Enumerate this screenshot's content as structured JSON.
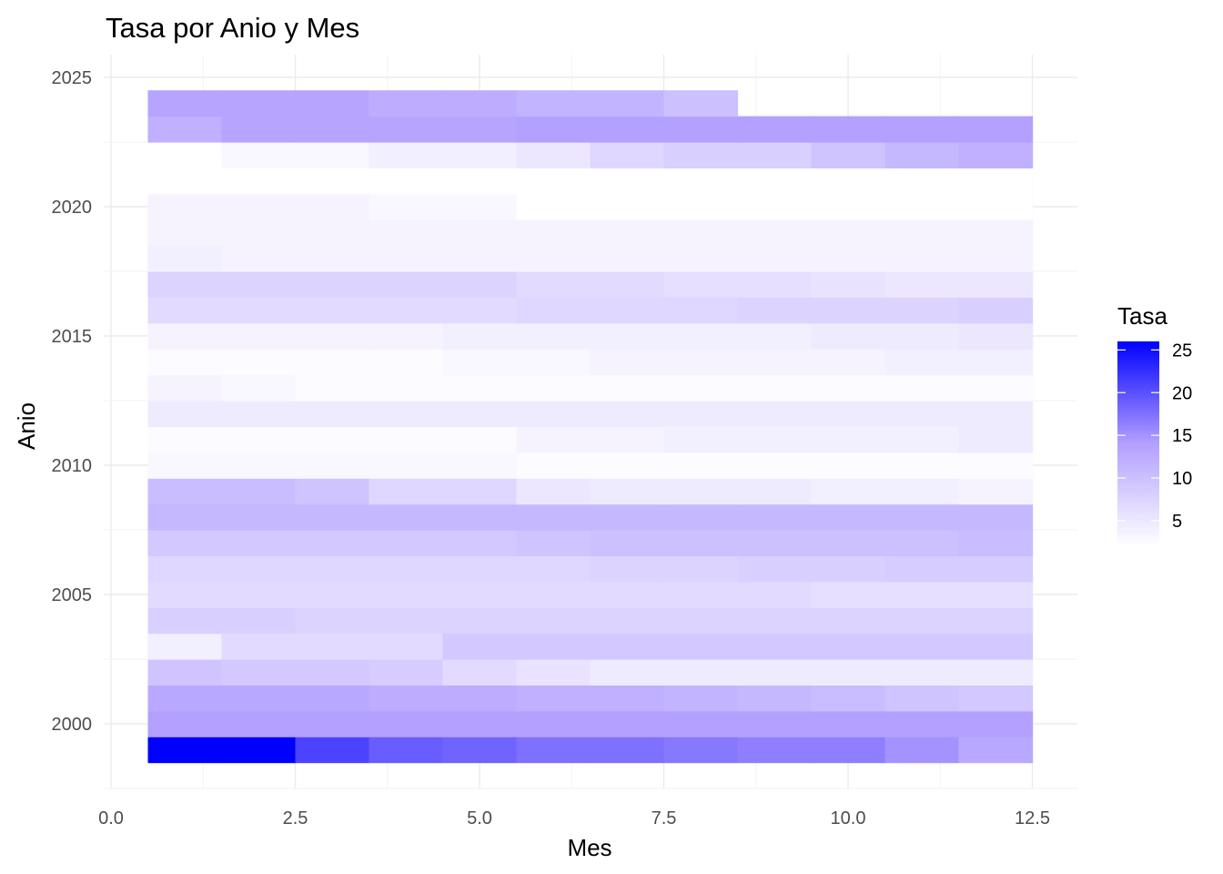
{
  "chart_data": {
    "type": "heatmap",
    "title": "Tasa por Anio y Mes",
    "xlabel": "Mes",
    "ylabel": "Anio",
    "xlim": [
      0,
      12.5
    ],
    "ylim": [
      1998.5,
      2024.5
    ],
    "x_ticks": [
      "0.0",
      "2.5",
      "5.0",
      "7.5",
      "10.0",
      "12.5"
    ],
    "y_ticks": [
      "2000",
      "2005",
      "2010",
      "2015",
      "2020",
      "2025"
    ],
    "grid": true,
    "legend": {
      "title": "Tasa",
      "position": "right",
      "labels": [
        "5",
        "10",
        "15",
        "20",
        "25"
      ],
      "low_color": "#ffffff",
      "high_color": "#0000ff",
      "range": [
        2,
        26
      ]
    },
    "months": [
      1,
      2,
      3,
      4,
      5,
      6,
      7,
      8,
      9,
      10,
      11,
      12
    ],
    "years": [
      1999,
      2000,
      2001,
      2002,
      2003,
      2004,
      2005,
      2006,
      2007,
      2008,
      2009,
      2010,
      2011,
      2012,
      2013,
      2014,
      2015,
      2016,
      2017,
      2018,
      2019,
      2020,
      2021,
      2022,
      2023,
      2024
    ],
    "values": [
      [
        26,
        26,
        21,
        19,
        18.5,
        17.5,
        17.5,
        17,
        16.5,
        16.5,
        15,
        13
      ],
      [
        14,
        14,
        14,
        14,
        14,
        14,
        14,
        14,
        14,
        14,
        14,
        14
      ],
      [
        13,
        13,
        13,
        12.5,
        12.5,
        12,
        12,
        11.5,
        11,
        10.5,
        9.5,
        9
      ],
      [
        9.5,
        9,
        9,
        8.5,
        6.5,
        5.5,
        4.5,
        4.5,
        4.5,
        4.5,
        4.5,
        4.5
      ],
      [
        4,
        6.5,
        6.5,
        6.5,
        9,
        9,
        9,
        9,
        9,
        9,
        9,
        9
      ],
      [
        8,
        8,
        7.5,
        7.5,
        7.5,
        7.5,
        7.5,
        7.5,
        7.5,
        7.5,
        7.5,
        7.5
      ],
      [
        6.5,
        6.5,
        6.5,
        6.5,
        6.5,
        6.5,
        6.5,
        6.5,
        6.5,
        6,
        6,
        6
      ],
      [
        7,
        7,
        7,
        7,
        7,
        7,
        7.5,
        7.5,
        8,
        8,
        8.5,
        8.5
      ],
      [
        9,
        9,
        9,
        9,
        9,
        9.5,
        10,
        10,
        10,
        10,
        10,
        10.5
      ],
      [
        11,
        11,
        11,
        11,
        11,
        11,
        11,
        11,
        11,
        11,
        11,
        11
      ],
      [
        10.5,
        10.5,
        9.5,
        7,
        7,
        5,
        4.5,
        4.5,
        4.5,
        4,
        4,
        3.5
      ],
      [
        3,
        3,
        3,
        3,
        3,
        2.5,
        2.5,
        2.5,
        2.5,
        2.5,
        2.5,
        2.5
      ],
      [
        2.5,
        2.5,
        2.5,
        2.5,
        2.5,
        3.5,
        3.5,
        4,
        4,
        4,
        4,
        4.5
      ],
      [
        4.5,
        4.5,
        4.5,
        4.5,
        4.5,
        4.5,
        4.5,
        4.5,
        4.5,
        4.5,
        4.5,
        4.5
      ],
      [
        3.5,
        3,
        2.5,
        2.5,
        2.5,
        2.5,
        2.5,
        2.5,
        2.5,
        2.5,
        2.5,
        2.5
      ],
      [
        2.5,
        2.5,
        2.5,
        2.5,
        3,
        3,
        3.5,
        3.5,
        3.5,
        3.5,
        4,
        4
      ],
      [
        3.5,
        3.5,
        3.5,
        3.5,
        4,
        4,
        4,
        4,
        4,
        4.5,
        4.5,
        5
      ],
      [
        6.5,
        6.5,
        6.5,
        6.5,
        6.5,
        7,
        7,
        7,
        7.5,
        7.5,
        7.5,
        8
      ],
      [
        7.5,
        7.5,
        7.5,
        7.5,
        7.5,
        6.5,
        6.5,
        6,
        6,
        5.5,
        5,
        5
      ],
      [
        4,
        3.5,
        3.5,
        3.5,
        3.5,
        3.5,
        3.5,
        3.5,
        3.5,
        3.5,
        3.5,
        3.5
      ],
      [
        3.5,
        3.5,
        3.5,
        3.5,
        3.5,
        3.5,
        3.5,
        3.5,
        3.5,
        3.5,
        3.5,
        3.5
      ],
      [
        3.5,
        3.5,
        3.5,
        3,
        3,
        2,
        2,
        2,
        1.5,
        1,
        1,
        1
      ],
      [
        1,
        1,
        1,
        1,
        1,
        1,
        1,
        1,
        1,
        1.2,
        1.2,
        1.8
      ],
      [
        2,
        3,
        3,
        4,
        4,
        5,
        7,
        8,
        8,
        9.5,
        11,
        12
      ],
      [
        12,
        13.5,
        13.5,
        13.5,
        13.5,
        14,
        14,
        14,
        14,
        14,
        14,
        14
      ],
      [
        13.5,
        13.5,
        13.5,
        12.5,
        12.5,
        11.5,
        11.5,
        10,
        null,
        null,
        null,
        null
      ]
    ]
  }
}
